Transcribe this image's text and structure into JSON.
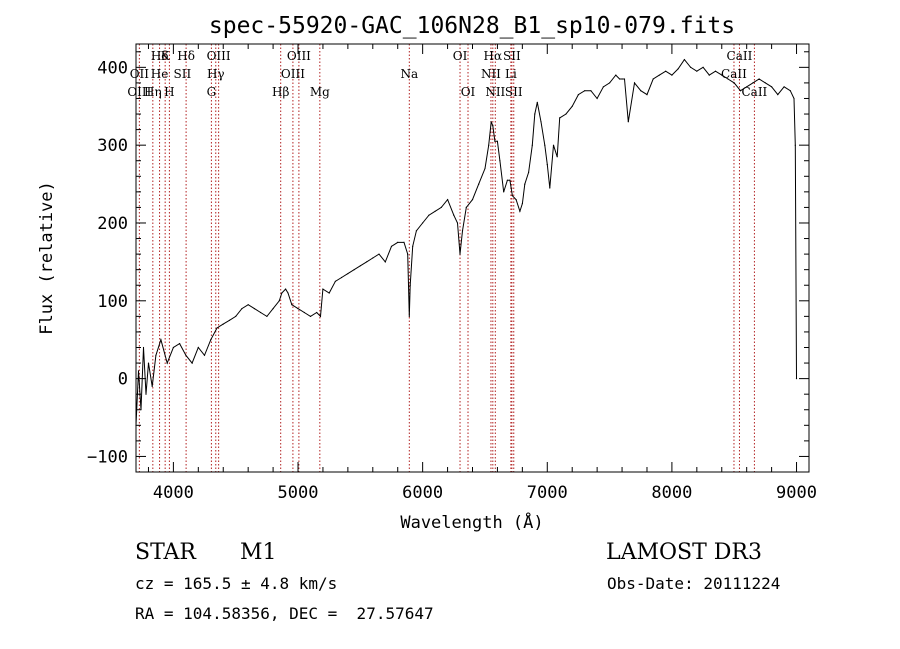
{
  "chart_data": {
    "type": "line",
    "title": "spec-55920-GAC_106N28_B1_sp10-079.fits",
    "xlabel": "Wavelength (Å)",
    "ylabel": "Flux (relative)",
    "xlim": [
      3700,
      9100
    ],
    "ylim": [
      -120,
      430
    ],
    "xticks": [
      4000,
      5000,
      6000,
      7000,
      8000,
      9000
    ],
    "yticks": [
      -100,
      0,
      100,
      200,
      300,
      400
    ],
    "series": [
      {
        "name": "flux",
        "x": [
          3700,
          3720,
          3740,
          3760,
          3780,
          3800,
          3830,
          3860,
          3900,
          3950,
          4000,
          4050,
          4100,
          4150,
          4200,
          4250,
          4300,
          4350,
          4400,
          4450,
          4500,
          4550,
          4600,
          4650,
          4700,
          4750,
          4800,
          4850,
          4870,
          4900,
          4920,
          4950,
          5000,
          5050,
          5100,
          5150,
          5180,
          5200,
          5250,
          5300,
          5350,
          5400,
          5450,
          5500,
          5550,
          5600,
          5650,
          5700,
          5750,
          5800,
          5850,
          5880,
          5893,
          5900,
          5920,
          5950,
          6000,
          6050,
          6100,
          6150,
          6200,
          6250,
          6280,
          6300,
          6320,
          6350,
          6400,
          6450,
          6500,
          6530,
          6550,
          6563,
          6580,
          6600,
          6620,
          6650,
          6680,
          6700,
          6720,
          6750,
          6780,
          6800,
          6820,
          6850,
          6880,
          6900,
          6920,
          6950,
          6980,
          7000,
          7020,
          7050,
          7080,
          7100,
          7150,
          7200,
          7250,
          7300,
          7350,
          7400,
          7450,
          7500,
          7550,
          7580,
          7600,
          7620,
          7650,
          7700,
          7750,
          7800,
          7850,
          7900,
          7950,
          8000,
          8050,
          8100,
          8150,
          8200,
          8250,
          8300,
          8350,
          8400,
          8450,
          8500,
          8550,
          8600,
          8650,
          8700,
          8750,
          8800,
          8850,
          8900,
          8950,
          8980,
          8990,
          9000
        ],
        "y": [
          -60,
          10,
          -40,
          40,
          -20,
          20,
          -10,
          30,
          50,
          20,
          40,
          45,
          30,
          20,
          40,
          30,
          50,
          65,
          70,
          75,
          80,
          90,
          95,
          90,
          85,
          80,
          90,
          100,
          110,
          115,
          110,
          95,
          90,
          85,
          80,
          85,
          80,
          115,
          110,
          125,
          130,
          135,
          140,
          145,
          150,
          155,
          160,
          150,
          170,
          175,
          175,
          160,
          80,
          120,
          170,
          190,
          200,
          210,
          215,
          220,
          230,
          210,
          200,
          160,
          190,
          220,
          230,
          250,
          270,
          300,
          330,
          325,
          305,
          305,
          280,
          240,
          255,
          255,
          235,
          230,
          215,
          225,
          250,
          265,
          300,
          340,
          355,
          330,
          300,
          275,
          245,
          300,
          285,
          335,
          340,
          350,
          365,
          370,
          370,
          360,
          375,
          380,
          390,
          385,
          385,
          385,
          330,
          380,
          370,
          365,
          385,
          390,
          395,
          390,
          398,
          410,
          400,
          395,
          400,
          390,
          395,
          390,
          385,
          380,
          370,
          375,
          380,
          385,
          380,
          375,
          365,
          375,
          370,
          360,
          300,
          0
        ]
      }
    ],
    "spectral_lines": [
      {
        "label": "Hδ",
        "wl": 3890,
        "row": 0
      },
      {
        "label": "K",
        "wl": 3934,
        "row": 0
      },
      {
        "label": "Hδ",
        "wl": 4102,
        "row": 0
      },
      {
        "label": "OIII",
        "wl": 4363,
        "row": 0
      },
      {
        "label": "OIII",
        "wl": 5007,
        "row": 0
      },
      {
        "label": "OI",
        "wl": 6300,
        "row": 0
      },
      {
        "label": "Hα",
        "wl": 6563,
        "row": 0
      },
      {
        "label": "SII",
        "wl": 6716,
        "row": 0
      },
      {
        "label": "CaII",
        "wl": 8542,
        "row": 0
      },
      {
        "label": "OII",
        "wl": 3727,
        "row": 1
      },
      {
        "label": "He",
        "wl": 3889,
        "row": 1
      },
      {
        "label": "SII",
        "wl": 4072,
        "row": 1
      },
      {
        "label": "Hγ",
        "wl": 4340,
        "row": 1
      },
      {
        "label": "OIII",
        "wl": 4959,
        "row": 1
      },
      {
        "label": "Na",
        "wl": 5893,
        "row": 1
      },
      {
        "label": "NII",
        "wl": 6548,
        "row": 1
      },
      {
        "label": "Li",
        "wl": 6708,
        "row": 1
      },
      {
        "label": "CaII",
        "wl": 8498,
        "row": 1
      },
      {
        "label": "OIII",
        "wl": 3727,
        "row": 2
      },
      {
        "label": "Hη",
        "wl": 3835,
        "row": 2
      },
      {
        "label": "H",
        "wl": 3968,
        "row": 2
      },
      {
        "label": "G",
        "wl": 4305,
        "row": 2
      },
      {
        "label": "Hβ",
        "wl": 4861,
        "row": 2
      },
      {
        "label": "Mg",
        "wl": 5175,
        "row": 2
      },
      {
        "label": "OI",
        "wl": 6364,
        "row": 2
      },
      {
        "label": "NII",
        "wl": 6583,
        "row": 2
      },
      {
        "label": "SII",
        "wl": 6731,
        "row": 2
      },
      {
        "label": "CaII",
        "wl": 8662,
        "row": 2
      }
    ],
    "marker_lines": [
      3727,
      3835,
      3889,
      3934,
      3968,
      4102,
      4305,
      4340,
      4363,
      4861,
      4959,
      5007,
      5175,
      5893,
      6300,
      6364,
      6548,
      6563,
      6583,
      6708,
      6716,
      6731,
      8498,
      8542,
      8662
    ]
  },
  "info": {
    "object_class": "STAR",
    "subclass": "M1",
    "survey": "LAMOST DR3",
    "cz": "cz = 165.5 ± 4.8 km/s",
    "obs_date": "Obs-Date: 20111224",
    "radec": "RA = 104.58356, DEC =  27.57647"
  },
  "colors": {
    "axis": "#000000",
    "spectrum": "#000000",
    "marker_line": "#b22222"
  }
}
